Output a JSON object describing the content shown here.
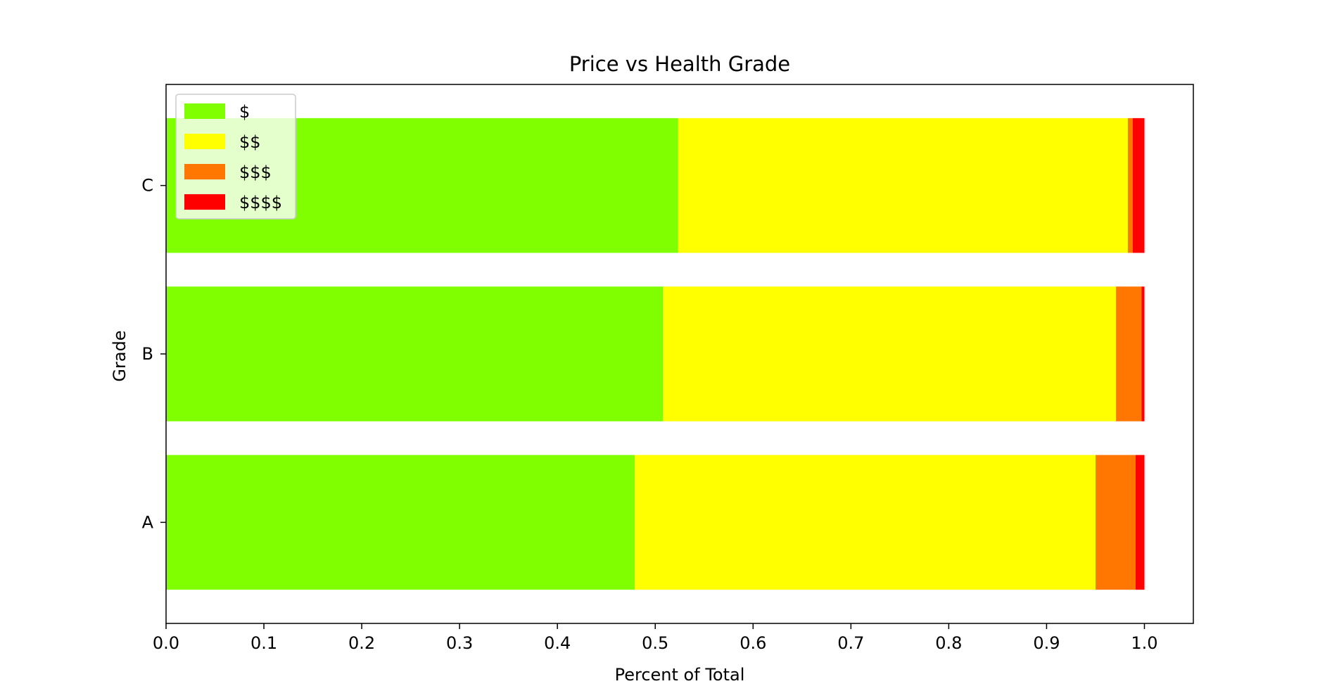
{
  "chart_data": {
    "type": "bar",
    "orientation": "horizontal",
    "stacked": true,
    "title": "Price vs Health Grade",
    "xlabel": "Percent of Total",
    "ylabel": "Grade",
    "xlim": [
      0,
      1.05
    ],
    "xticks": [
      0.0,
      0.1,
      0.2,
      0.3,
      0.4,
      0.5,
      0.6,
      0.7,
      0.8,
      0.9,
      1.0
    ],
    "xtick_labels": [
      "0.0",
      "0.1",
      "0.2",
      "0.3",
      "0.4",
      "0.5",
      "0.6",
      "0.7",
      "0.8",
      "0.9",
      "1.0"
    ],
    "categories": [
      "A",
      "B",
      "C"
    ],
    "grid": false,
    "legend_position": "top-left",
    "series": [
      {
        "name": "$",
        "color": "#7fff00",
        "values": [
          0.479,
          0.508,
          0.523
        ]
      },
      {
        "name": "$$",
        "color": "#ffff00",
        "values": [
          0.471,
          0.463,
          0.46
        ]
      },
      {
        "name": "$$$",
        "color": "#ff7700",
        "values": [
          0.041,
          0.026,
          0.005
        ]
      },
      {
        "name": "$$$$",
        "color": "#ff0000",
        "values": [
          0.009,
          0.003,
          0.012
        ]
      }
    ]
  }
}
